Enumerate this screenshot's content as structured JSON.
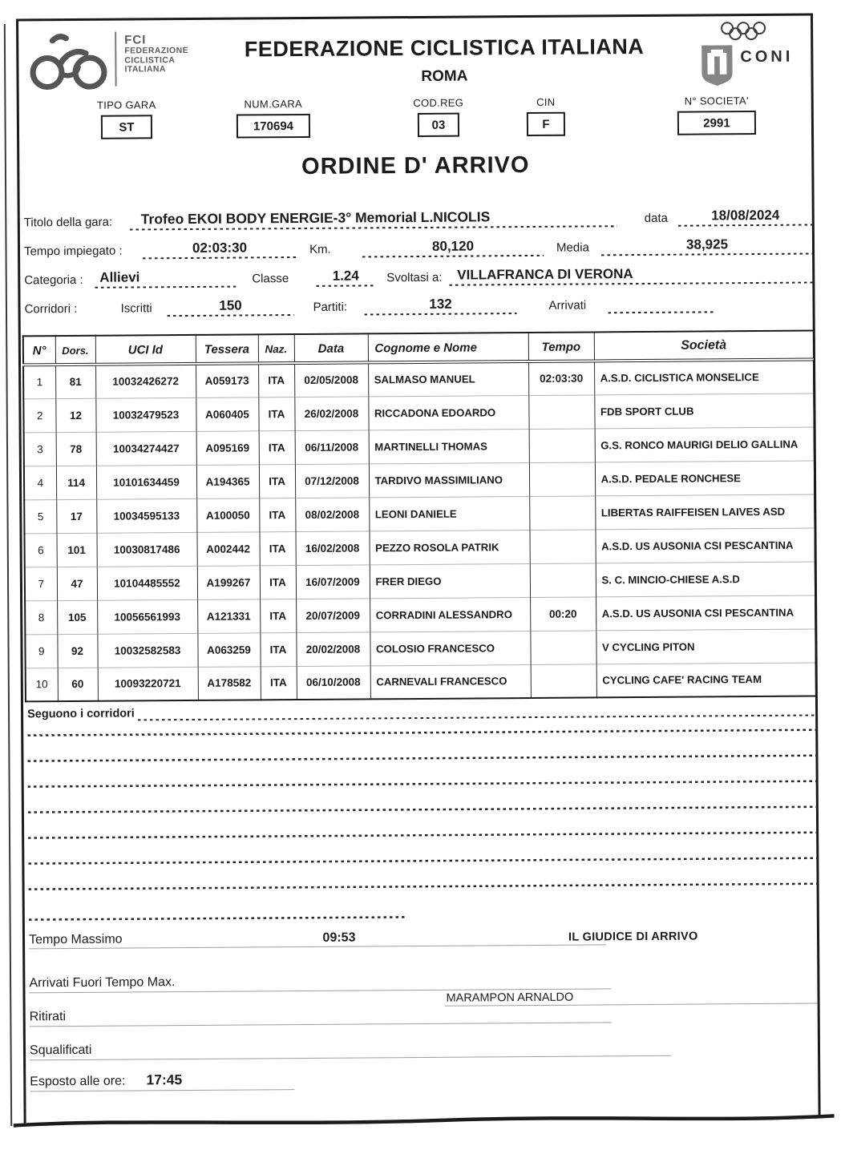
{
  "colors": {
    "ink": "#1c1c1c",
    "logo_gray": "#565656",
    "line_gray": "#9f9f9f",
    "paper": "#ffffff"
  },
  "header": {
    "fci_logo_icon": "fci-bicycle-logo",
    "fci_abbr": "FCI",
    "fci_lines": [
      "FEDERAZIONE",
      "CICLISTICA",
      "ITALIANA"
    ],
    "title": "FEDERAZIONE CICLISTICA ITALIANA",
    "subtitle": "ROMA",
    "rings_icon": "olympic-rings-icon",
    "shield_icon": "coni-shield-icon",
    "coni_label": "CONI"
  },
  "meta_fields": [
    {
      "label": "TIPO GARA",
      "value": "ST"
    },
    {
      "label": "NUM.GARA",
      "value": "170694"
    },
    {
      "label": "COD.REG",
      "value": "03"
    },
    {
      "label": "CIN",
      "value": "F"
    },
    {
      "label": "N° SOCIETA'",
      "value": "2991"
    }
  ],
  "document_title": "ORDINE D' ARRIVO",
  "race_info": {
    "titolo_label": "Titolo della gara:",
    "titolo_value": "Trofeo EKOI BODY ENERGIE-3° Memorial L.NICOLIS",
    "data_label": "data",
    "data_value": "18/08/2024",
    "tempo_label": "Tempo impiegato :",
    "tempo_value": "02:03:30",
    "km_label": "Km.",
    "km_value": "80,120",
    "media_label": "Media",
    "media_value": "38,925",
    "categoria_label": "Categoria :",
    "categoria_value": "Allievi",
    "classe_label": "Classe",
    "classe_value": "1.24",
    "svoltasi_label": "Svoltasi a:",
    "svoltasi_value": "VILLAFRANCA DI VERONA",
    "corridori_label": "Corridori :",
    "iscritti_label": "Iscritti",
    "iscritti_value": "150",
    "partiti_label": "Partiti:",
    "partiti_value": "132",
    "arrivati_label": "Arrivati",
    "arrivati_value": ""
  },
  "results_table": {
    "headers": [
      "N°",
      "Dors.",
      "UCI  Id",
      "Tessera",
      "Naz.",
      "Data",
      "Cognome e Nome",
      "Tempo",
      "Società"
    ],
    "rows": [
      [
        "1",
        "81",
        "10032426272",
        "A059173",
        "ITA",
        "02/05/2008",
        "SALMASO MANUEL",
        "02:03:30",
        "A.S.D. CICLISTICA MONSELICE"
      ],
      [
        "2",
        "12",
        "10032479523",
        "A060405",
        "ITA",
        "26/02/2008",
        "RICCADONA EDOARDO",
        "",
        "FDB SPORT CLUB"
      ],
      [
        "3",
        "78",
        "10034274427",
        "A095169",
        "ITA",
        "06/11/2008",
        "MARTINELLI THOMAS",
        "",
        "G.S. RONCO MAURIGI DELIO GALLINA"
      ],
      [
        "4",
        "114",
        "10101634459",
        "A194365",
        "ITA",
        "07/12/2008",
        "TARDIVO MASSIMILIANO",
        "",
        "A.S.D. PEDALE RONCHESE"
      ],
      [
        "5",
        "17",
        "10034595133",
        "A100050",
        "ITA",
        "08/02/2008",
        "LEONI DANIELE",
        "",
        "LIBERTAS RAIFFEISEN LAIVES ASD"
      ],
      [
        "6",
        "101",
        "10030817486",
        "A002442",
        "ITA",
        "16/02/2008",
        "PEZZO ROSOLA PATRIK",
        "",
        "A.S.D. US AUSONIA CSI PESCANTINA"
      ],
      [
        "7",
        "47",
        "10104485552",
        "A199267",
        "ITA",
        "16/07/2009",
        "FRER DIEGO",
        "",
        "S. C. MINCIO-CHIESE A.S.D"
      ],
      [
        "8",
        "105",
        "10056561993",
        "A121331",
        "ITA",
        "20/07/2009",
        "CORRADINI ALESSANDRO",
        "00:20",
        "A.S.D. US AUSONIA CSI PESCANTINA"
      ],
      [
        "9",
        "92",
        "10032582583",
        "A063259",
        "ITA",
        "20/02/2008",
        "COLOSIO FRANCESCO",
        "",
        "V CYCLING PITON"
      ],
      [
        "10",
        "60",
        "10093220721",
        "A178582",
        "ITA",
        "06/10/2008",
        "CARNEVALI FRANCESCO",
        "",
        "CYCLING CAFE' RACING TEAM"
      ]
    ]
  },
  "footer": {
    "seguono_label": "Seguono i corridori",
    "filler_line_count": 7,
    "tempo_massimo_label": "Tempo Massimo",
    "tempo_massimo_value": "09:53",
    "giudice_title": "IL GIUDICE DI ARRIVO",
    "arrivati_fuori_label": "Arrivati Fuori Tempo Max.",
    "ritirati_label": "Ritirati",
    "giudice_name": "MARAMPON ARNALDO",
    "squalificati_label": "Squalificati",
    "esposto_label": "Esposto alle ore:",
    "esposto_value": "17:45"
  }
}
